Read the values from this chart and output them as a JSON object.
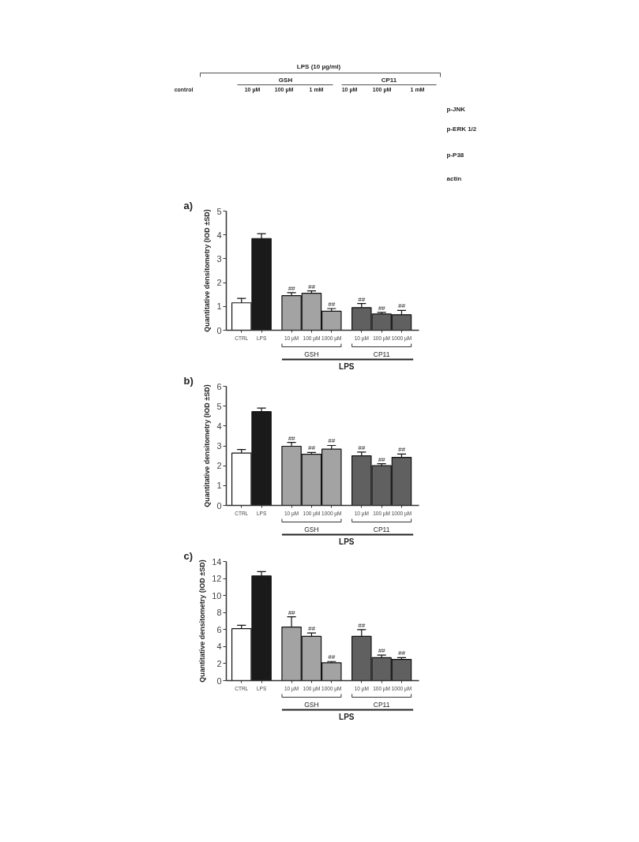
{
  "chart_data": [
    {
      "type": "other",
      "title": "LPS (10 µg/ml)",
      "annotations": [
        "control",
        "GSH",
        "CP11",
        "10 µM",
        "100 µM",
        "1 mM",
        "10 µM",
        "100 µM",
        "1 mM",
        "p-JNK",
        "p-ERK 1/2",
        "p-P38",
        "actin"
      ]
    },
    {
      "type": "bar",
      "title": "a)",
      "ylabel": "Quantitative densitometry (IOD ±SD)",
      "categories": [
        "CTRL",
        "LPS",
        "10 µM",
        "100 µM",
        "1000 µM",
        "10 µM",
        "100 µM",
        "1000 µM"
      ],
      "values": [
        1.15,
        3.85,
        1.45,
        1.55,
        0.8,
        0.95,
        0.68,
        0.65
      ],
      "errors": [
        0.19,
        0.2,
        0.13,
        0.1,
        0.11,
        0.17,
        0.07,
        0.18
      ],
      "colors": [
        "#ffffff",
        "#1a1a1a",
        "#a3a3a3",
        "#a3a3a3",
        "#a3a3a3",
        "#606060",
        "#606060",
        "#606060"
      ],
      "value_labels": [
        null,
        null,
        "##",
        "##",
        "##",
        "##",
        "##",
        "##"
      ],
      "ylim": [
        0,
        5
      ],
      "yticks": [
        0,
        1,
        2,
        3,
        4,
        5
      ],
      "annotations": [
        "GSH",
        "CP11",
        "LPS"
      ]
    },
    {
      "type": "bar",
      "title": "b)",
      "ylabel": "Quantitative densitometry (IOD ±SD)",
      "categories": [
        "CTRL",
        "LPS",
        "10 µM",
        "100 µM",
        "1000 µM",
        "10 µM",
        "100 µM",
        "1000 µM"
      ],
      "values": [
        2.64,
        4.72,
        2.98,
        2.58,
        2.84,
        2.5,
        2.0,
        2.42
      ],
      "errors": [
        0.18,
        0.18,
        0.19,
        0.09,
        0.18,
        0.19,
        0.1,
        0.17
      ],
      "colors": [
        "#ffffff",
        "#1a1a1a",
        "#a3a3a3",
        "#a3a3a3",
        "#a3a3a3",
        "#606060",
        "#606060",
        "#606060"
      ],
      "value_labels": [
        null,
        null,
        "##",
        "##",
        "##",
        "##",
        "##",
        "##"
      ],
      "ylim": [
        0,
        6
      ],
      "yticks": [
        0,
        1,
        2,
        3,
        4,
        5,
        6
      ],
      "annotations": [
        "GSH",
        "CP11",
        "LPS"
      ]
    },
    {
      "type": "bar",
      "title": "c)",
      "ylabel": "Quantitative densitometry (IOD ±SD)",
      "categories": [
        "CTRL",
        "LPS",
        "10 µM",
        "100 µM",
        "1000 µM",
        "10 µM",
        "100 µM",
        "1000 µM"
      ],
      "values": [
        6.1,
        12.3,
        6.3,
        5.2,
        2.1,
        5.2,
        2.7,
        2.5
      ],
      "errors": [
        0.4,
        0.5,
        1.2,
        0.4,
        0.15,
        0.8,
        0.3,
        0.2
      ],
      "colors": [
        "#ffffff",
        "#1a1a1a",
        "#a3a3a3",
        "#a3a3a3",
        "#a3a3a3",
        "#606060",
        "#606060",
        "#606060"
      ],
      "value_labels": [
        null,
        null,
        "##",
        "##",
        "##",
        "##",
        "##",
        "##"
      ],
      "ylim": [
        0,
        14
      ],
      "yticks": [
        0,
        2,
        4,
        6,
        8,
        10,
        12,
        14
      ],
      "annotations": [
        "GSH",
        "CP11",
        "LPS"
      ]
    }
  ]
}
